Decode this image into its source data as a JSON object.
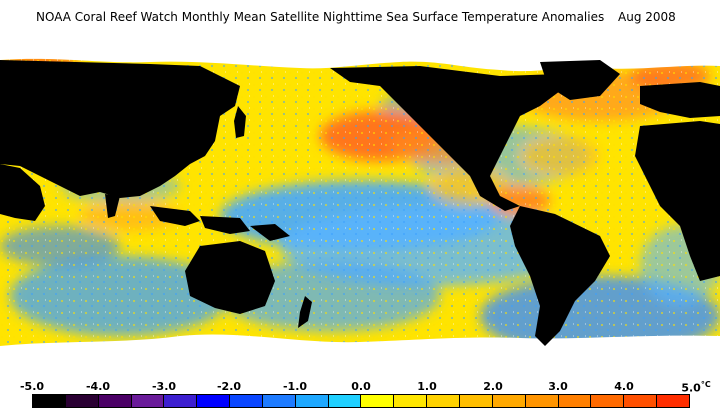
{
  "header": {
    "title": "NOAA Coral Reef Watch Monthly Mean Satellite Nighttime Sea Surface Temperature Anomalies",
    "date": "Aug 2008"
  },
  "legend": {
    "ticks": [
      "-5.0",
      "-4.0",
      "-3.0",
      "-2.0",
      "-1.0",
      "0.0",
      "1.0",
      "2.0",
      "3.0",
      "4.0",
      "5.0"
    ],
    "unit": "°C",
    "colors": [
      "#000000",
      "#2a0033",
      "#4b0066",
      "#6a1b9a",
      "#3d1fd0",
      "#0000ff",
      "#0a46ff",
      "#1e7bff",
      "#1ea8ff",
      "#20d0ff",
      "#ffff00",
      "#ffe600",
      "#ffd200",
      "#ffbe00",
      "#ffa800",
      "#ff9400",
      "#ff7f00",
      "#ff6a00",
      "#ff5000",
      "#ff2e00"
    ]
  },
  "map_colors": {
    "land": "#000000",
    "ice": "#ffffff",
    "cool": "#4fa3ff",
    "neutral": "#ffe400",
    "warm": "#ff9a1a",
    "hot": "#ff5a1a"
  }
}
